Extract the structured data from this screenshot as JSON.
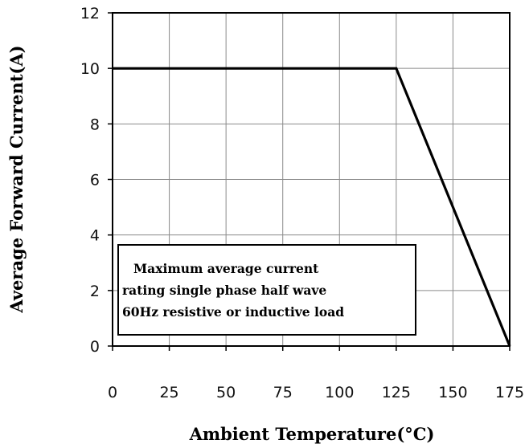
{
  "chart_data": {
    "type": "line",
    "title": "",
    "xlabel": "Ambient Temperature(°C)",
    "ylabel": "Average Forward Current(A)",
    "xlim": [
      0,
      175
    ],
    "ylim": [
      0,
      12
    ],
    "x_ticks": [
      0,
      25,
      50,
      75,
      100,
      125,
      150,
      175
    ],
    "y_ticks": [
      0,
      2,
      4,
      6,
      8,
      10,
      12
    ],
    "x_tick_labels": [
      "0",
      "25",
      "50",
      "75",
      "100",
      "125",
      "150",
      "175"
    ],
    "y_tick_labels": [
      "0",
      "2",
      "4",
      "6",
      "8",
      "10",
      "12"
    ],
    "grid": true,
    "legend": "none",
    "series": [
      {
        "x": [
          0,
          125,
          175
        ],
        "y": [
          10,
          10,
          0
        ],
        "color": "#000000"
      }
    ],
    "annotation": {
      "lines": [
        "Maximum average current",
        "rating single phase half wave",
        "60Hz resistive or inductive load"
      ]
    }
  }
}
